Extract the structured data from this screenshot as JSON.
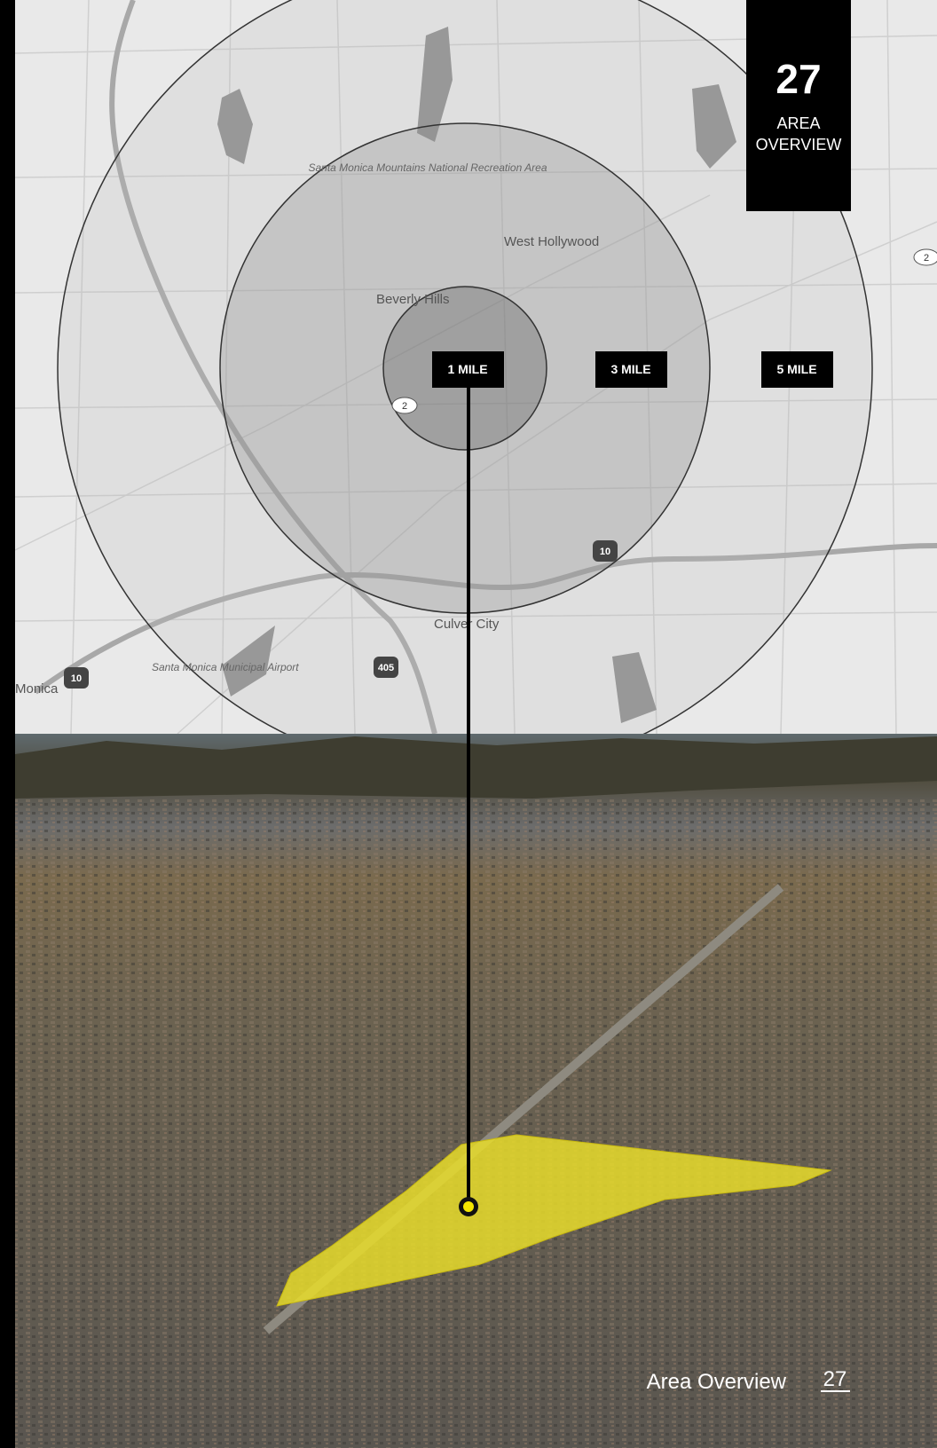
{
  "tab": {
    "number": "27",
    "label_lines": [
      "AREA",
      "OVERVIEW"
    ]
  },
  "map": {
    "places": [
      "Santa Monica Mountains National Recreation Area",
      "West Hollywood",
      "Beverly Hills",
      "Culver City",
      "Santa Monica Municipal Airport",
      "Monica"
    ],
    "highways": [
      "10",
      "405",
      "10",
      "2",
      "2"
    ],
    "radius_labels": [
      "1 MILE",
      "3 MILE",
      "5 MILE"
    ]
  },
  "footer": {
    "title": "Area Overview",
    "page": "27"
  }
}
